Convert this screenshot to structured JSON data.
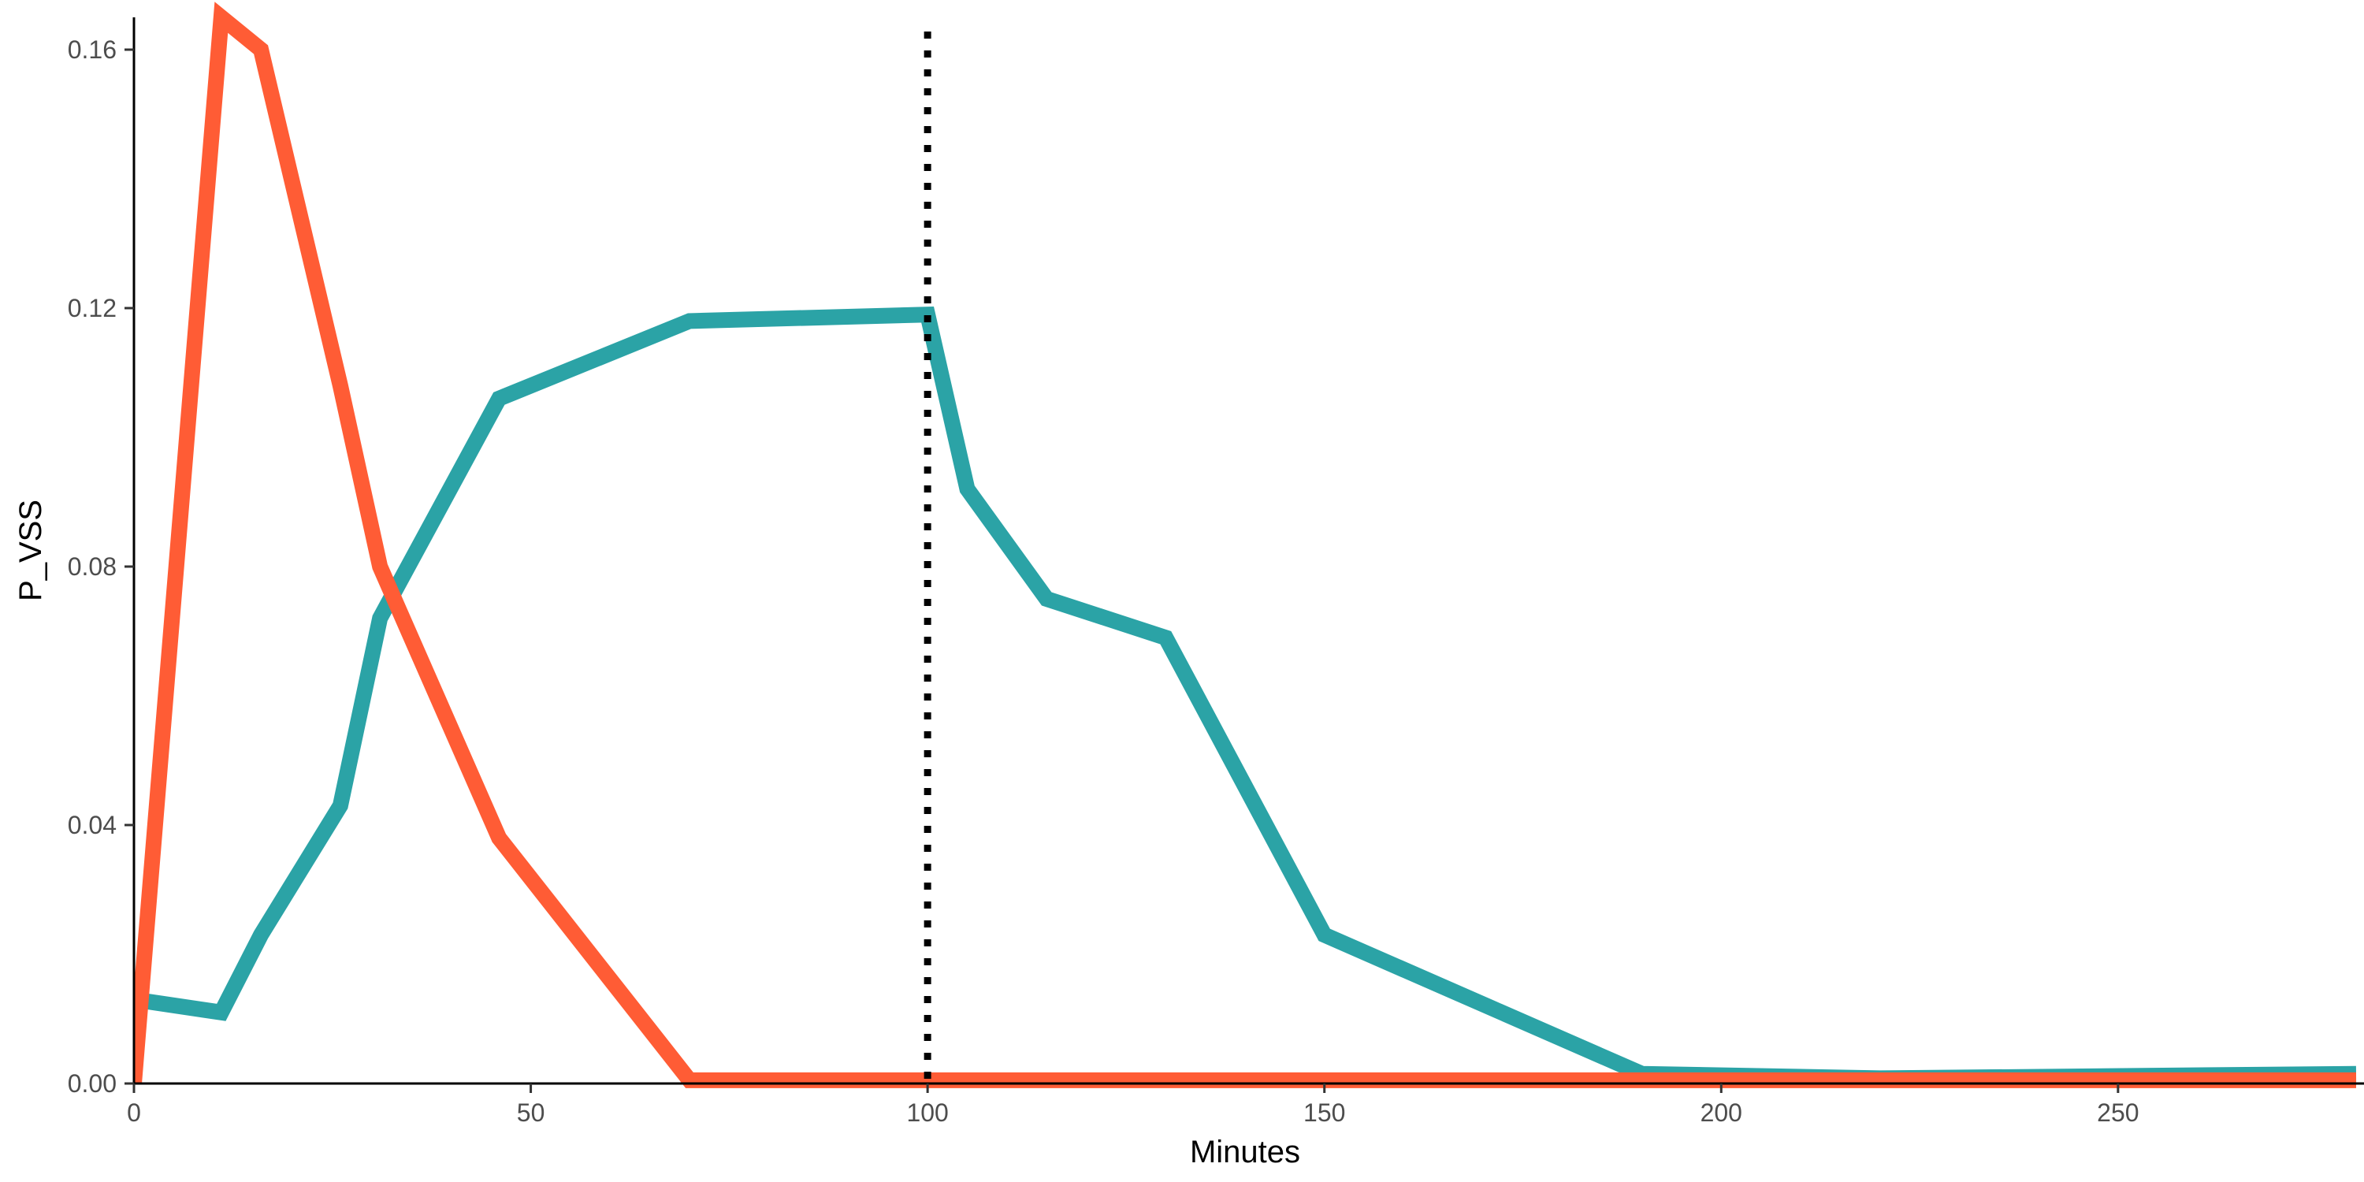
{
  "chart_data": {
    "type": "line",
    "xlabel": "Minutes",
    "ylabel": "P_VSS",
    "xlim": [
      0,
      280
    ],
    "ylim": [
      0,
      0.165
    ],
    "x_ticks": [
      0,
      50,
      100,
      150,
      200,
      250
    ],
    "y_ticks": [
      0.0,
      0.04,
      0.08,
      0.12,
      0.16
    ],
    "x_tick_labels": [
      "0",
      "50",
      "100",
      "150",
      "200",
      "250"
    ],
    "y_tick_labels": [
      "0.00",
      "0.04",
      "0.08",
      "0.12",
      "0.16"
    ],
    "grid": false,
    "legend": "none",
    "reference_lines": [
      {
        "axis": "x",
        "value": 100,
        "style": "dotted",
        "color": "#000000"
      }
    ],
    "series": [
      {
        "color": "#2BA3A6",
        "x": [
          0,
          11,
          16,
          26,
          31,
          46,
          70,
          100,
          105,
          115,
          130,
          150,
          190,
          220,
          280
        ],
        "y": [
          0.013,
          0.011,
          0.023,
          0.043,
          0.072,
          0.106,
          0.118,
          0.119,
          0.092,
          0.075,
          0.069,
          0.023,
          0.0015,
          0.0008,
          0.0015
        ]
      },
      {
        "color": "#FF5C35",
        "x": [
          0,
          11,
          16,
          26,
          31,
          46,
          70,
          100,
          150,
          200,
          250,
          280
        ],
        "y": [
          0.0,
          0.165,
          0.16,
          0.108,
          0.08,
          0.038,
          0.0005,
          0.0005,
          0.0005,
          0.0005,
          0.0005,
          0.0005
        ]
      }
    ]
  }
}
